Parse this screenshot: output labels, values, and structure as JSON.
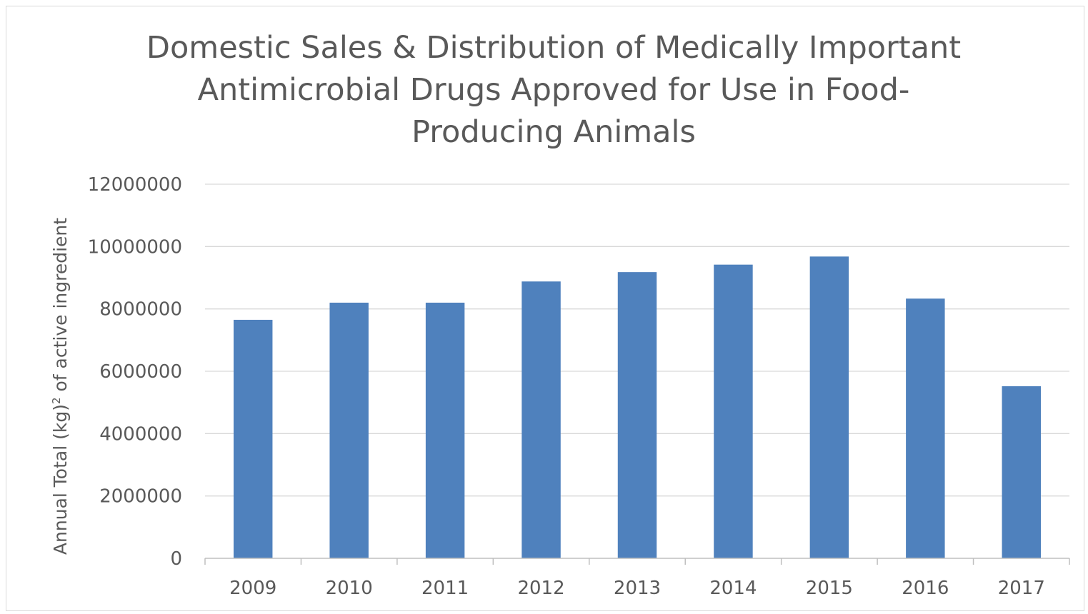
{
  "chart_data": {
    "type": "bar",
    "title": "Domestic Sales & Distribution of Medically Important\nAntimicrobial Drugs Approved for Use in Food-\nProducing Animals",
    "xlabel": "",
    "ylabel": {
      "pre": "Annual Total (kg)",
      "sup": "2",
      "post": " of active ingredient"
    },
    "categories": [
      "2009",
      "2010",
      "2011",
      "2012",
      "2013",
      "2014",
      "2015",
      "2016",
      "2017"
    ],
    "values": [
      7650000,
      8200000,
      8200000,
      8880000,
      9180000,
      9420000,
      9680000,
      8330000,
      5520000
    ],
    "ylim": [
      0,
      12000000
    ],
    "yticks": [
      "0",
      "2000000",
      "4000000",
      "6000000",
      "8000000",
      "10000000",
      "12000000"
    ],
    "grid": true,
    "legend": "none",
    "colors": {
      "bar": "#4f81bd",
      "grid": "#d9d9d9",
      "axis": "#bfbfbf",
      "text": "#595959"
    }
  }
}
